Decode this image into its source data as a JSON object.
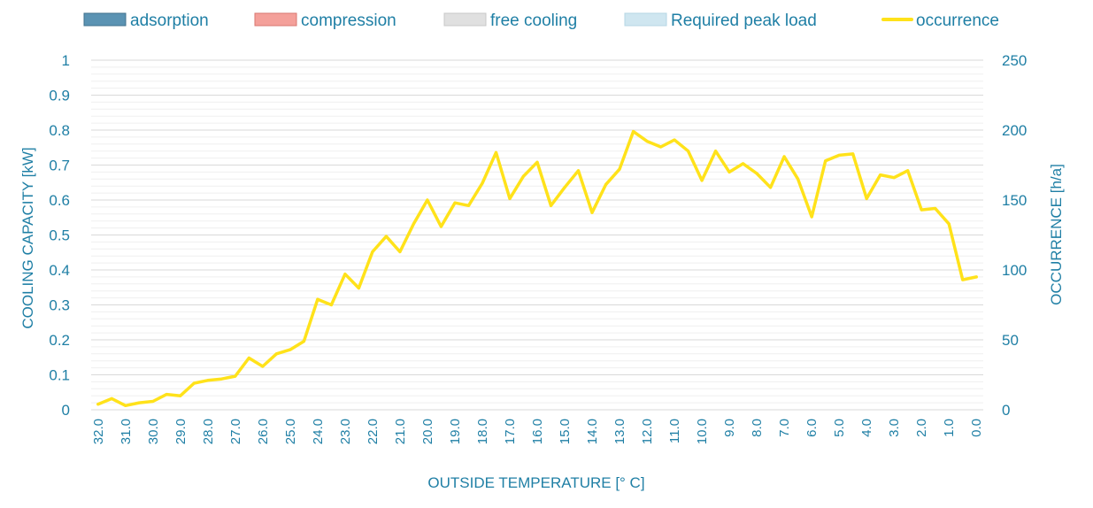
{
  "chart_data": {
    "type": "line",
    "xlabel": "OUTSIDE TEMPERATURE [° C]",
    "ylabel": "COOLING CAPACITY [kW]",
    "y2label": "OCCURRENCE [h/a]",
    "ylim": [
      0,
      1
    ],
    "y2lim": [
      0,
      250
    ],
    "yticks": [
      "0",
      "0.1",
      "0.2",
      "0.3",
      "0.4",
      "0.5",
      "0.6",
      "0.7",
      "0.8",
      "0.9",
      "1"
    ],
    "y2ticks": [
      "0",
      "50",
      "100",
      "150",
      "200",
      "250"
    ],
    "grid": true,
    "legend_position": "top",
    "legend": [
      {
        "label": "adsorption",
        "type": "box",
        "color": "#5b93b3",
        "border": "#41718c"
      },
      {
        "label": "compression",
        "type": "box",
        "color": "#f4a09a",
        "border": "#d97770"
      },
      {
        "label": "free cooling",
        "type": "box",
        "color": "#e0e0e0",
        "border": "#c8c8c8"
      },
      {
        "label": "Required peak load",
        "type": "box",
        "color": "#cfe6f0",
        "border": "#b5d6e4"
      },
      {
        "label": "occurrence",
        "type": "line",
        "color": "#ffe21a"
      }
    ],
    "categories": [
      "32.0",
      "31.5",
      "31.0",
      "30.5",
      "30.0",
      "29.5",
      "29.0",
      "28.5",
      "28.0",
      "27.5",
      "27.0",
      "26.5",
      "26.0",
      "25.5",
      "25.0",
      "24.5",
      "24.0",
      "23.5",
      "23.0",
      "22.5",
      "22.0",
      "21.5",
      "21.0",
      "20.5",
      "20.0",
      "19.5",
      "19.0",
      "18.5",
      "18.0",
      "17.5",
      "17.0",
      "16.5",
      "16.0",
      "15.5",
      "15.0",
      "14.5",
      "14.0",
      "13.5",
      "13.0",
      "12.5",
      "12.0",
      "11.5",
      "11.0",
      "10.5",
      "10.0",
      "9.5",
      "9.0",
      "8.5",
      "8.0",
      "7.5",
      "7.0",
      "6.5",
      "6.0",
      "5.5",
      "5.0",
      "4.5",
      "4.0",
      "3.5",
      "3.0",
      "2.5",
      "2.0",
      "1.5",
      "1.0",
      "0.5",
      "0.0"
    ],
    "tick_labels": [
      "32.0",
      "31.0",
      "30.0",
      "29.0",
      "28.0",
      "27.0",
      "26.0",
      "25.0",
      "24.0",
      "23.0",
      "22.0",
      "21.0",
      "20.0",
      "19.0",
      "18.0",
      "17.0",
      "16.0",
      "15.0",
      "14.0",
      "13.0",
      "12.0",
      "11.0",
      "10.0",
      "9.0",
      "8.0",
      "7.0",
      "6.0",
      "5.0",
      "4.0",
      "3.0",
      "2.0",
      "1.0",
      "0.0"
    ],
    "series": [
      {
        "name": "occurrence",
        "axis": "right",
        "color": "#ffe21a",
        "values": [
          4,
          8,
          3,
          5,
          6,
          11,
          10,
          19,
          21,
          22,
          24,
          37,
          31,
          40,
          43,
          49,
          79,
          75,
          97,
          87,
          113,
          124,
          113,
          133,
          150,
          131,
          148,
          146,
          162,
          184,
          151,
          167,
          177,
          146,
          159,
          171,
          141,
          161,
          172,
          199,
          192,
          188,
          193,
          185,
          164,
          185,
          170,
          176,
          169,
          159,
          181,
          165,
          138,
          178,
          182,
          183,
          151,
          168,
          166,
          171,
          143,
          144,
          133,
          93,
          95
        ]
      }
    ]
  }
}
